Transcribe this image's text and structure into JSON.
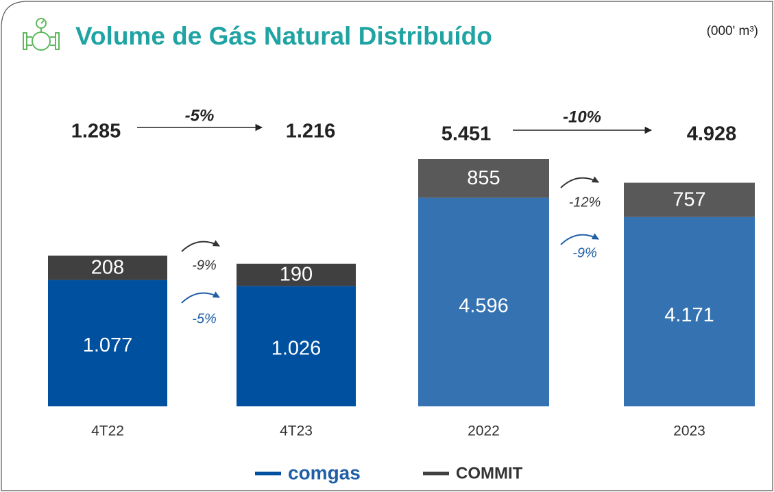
{
  "header": {
    "title": "Volume de Gás Natural Distribuído",
    "unit": "(000' m³)"
  },
  "chart_data": [
    {
      "type": "bar",
      "stacked": true,
      "categories": [
        "4T22",
        "4T23"
      ],
      "series": [
        {
          "name": "comgas",
          "color": "#0050a0",
          "values": [
            1077,
            1026
          ],
          "value_labels": [
            "1.077",
            "1.026"
          ],
          "change": "-5%"
        },
        {
          "name": "COMMIT",
          "color": "#404040",
          "values": [
            208,
            190
          ],
          "value_labels": [
            "208",
            "190"
          ],
          "change": "-9%"
        }
      ],
      "totals": {
        "values": [
          1285,
          1216
        ],
        "value_labels": [
          "1.285",
          "1.216"
        ]
      },
      "change": "-5%"
    },
    {
      "type": "bar",
      "stacked": true,
      "categories": [
        "2022",
        "2023"
      ],
      "series": [
        {
          "name": "comgas",
          "color": "#3472b1",
          "values": [
            4596,
            4171
          ],
          "value_labels": [
            "4.596",
            "4.171"
          ],
          "change": "-9%"
        },
        {
          "name": "COMMIT",
          "color": "#595959",
          "values": [
            855,
            757
          ],
          "value_labels": [
            "855",
            "757"
          ],
          "change": "-12%"
        }
      ],
      "totals": {
        "values": [
          5451,
          4928
        ],
        "value_labels": [
          "5.451",
          "4.928"
        ]
      },
      "change": "-10%"
    }
  ]
}
